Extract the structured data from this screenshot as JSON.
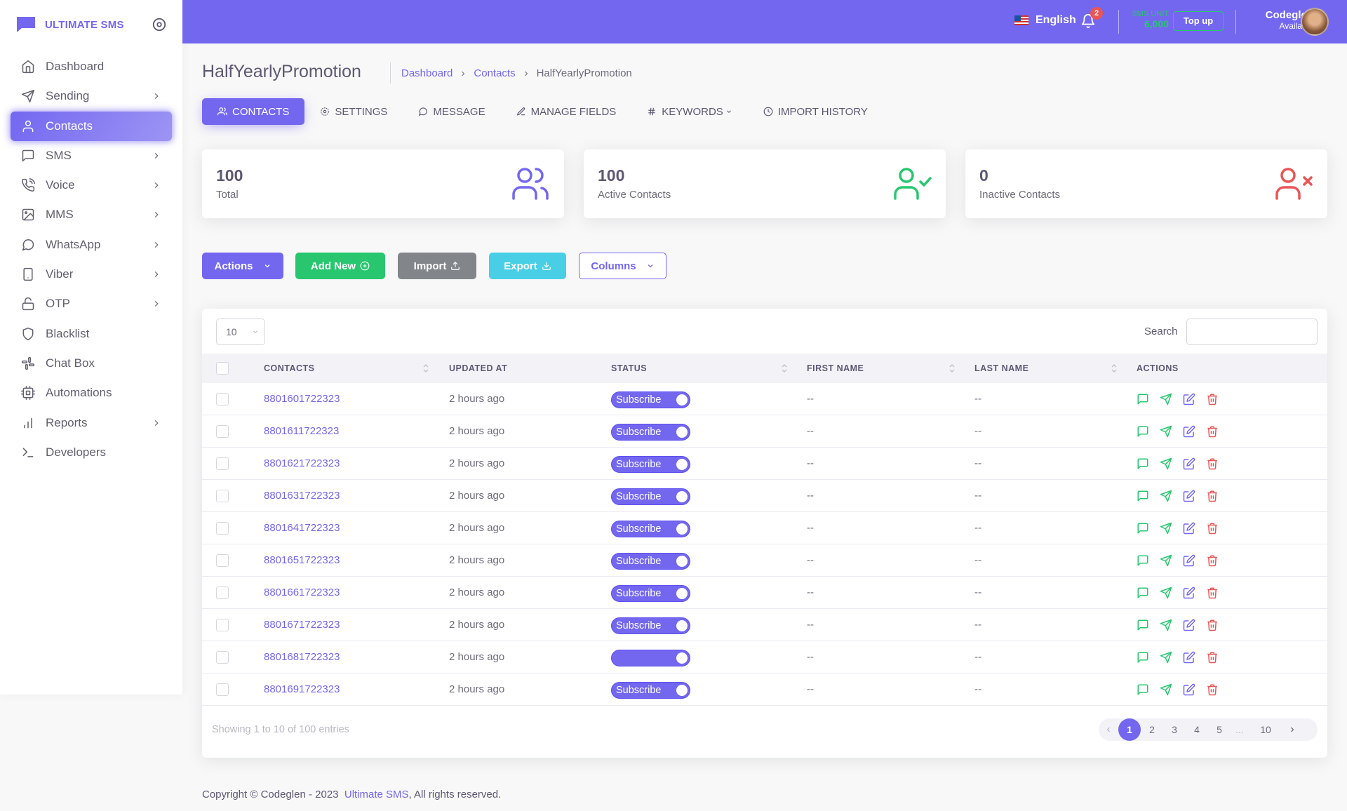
{
  "brand": {
    "name": "ULTIMATE SMS"
  },
  "topbar": {
    "language": "English",
    "notif_count": "2",
    "sms_unit_label": "SMS UNIT",
    "sms_unit_value": "6,000",
    "topup_label": "Top up",
    "user_name": "Codeglen",
    "user_status": "Available"
  },
  "sidebar": {
    "items": [
      {
        "label": "Dashboard",
        "icon": "home-icon",
        "has_children": false
      },
      {
        "label": "Sending",
        "icon": "send-icon",
        "has_children": true
      },
      {
        "label": "Contacts",
        "icon": "user-icon",
        "has_children": false,
        "active": true
      },
      {
        "label": "SMS",
        "icon": "message-square-icon",
        "has_children": true
      },
      {
        "label": "Voice",
        "icon": "phone-call-icon",
        "has_children": true
      },
      {
        "label": "MMS",
        "icon": "image-icon",
        "has_children": true
      },
      {
        "label": "WhatsApp",
        "icon": "message-circle-icon",
        "has_children": true
      },
      {
        "label": "Viber",
        "icon": "smartphone-icon",
        "has_children": true
      },
      {
        "label": "OTP",
        "icon": "unlock-icon",
        "has_children": true
      },
      {
        "label": "Blacklist",
        "icon": "shield-icon",
        "has_children": false
      },
      {
        "label": "Chat Box",
        "icon": "slack-icon",
        "has_children": false
      },
      {
        "label": "Automations",
        "icon": "cpu-icon",
        "has_children": false
      },
      {
        "label": "Reports",
        "icon": "bar-chart-icon",
        "has_children": true
      },
      {
        "label": "Developers",
        "icon": "terminal-icon",
        "has_children": false
      }
    ]
  },
  "page": {
    "title": "HalfYearlyPromotion",
    "breadcrumb": [
      "Dashboard",
      "Contacts",
      "HalfYearlyPromotion"
    ]
  },
  "tabs": [
    {
      "label": "CONTACTS",
      "icon": "users-icon"
    },
    {
      "label": "SETTINGS",
      "icon": "settings-icon"
    },
    {
      "label": "MESSAGE",
      "icon": "message-circle-icon"
    },
    {
      "label": "MANAGE FIELDS",
      "icon": "edit-icon"
    },
    {
      "label": "KEYWORDS",
      "icon": "hash-icon"
    },
    {
      "label": "IMPORT HISTORY",
      "icon": "clock-icon"
    }
  ],
  "stats": [
    {
      "value": "100",
      "label": "Total",
      "icon": "users-icon",
      "color": "#7367f0"
    },
    {
      "value": "100",
      "label": "Active Contacts",
      "icon": "user-check-icon",
      "color": "#28c76f"
    },
    {
      "value": "0",
      "label": "Inactive Contacts",
      "icon": "user-x-icon",
      "color": "#ea5455"
    }
  ],
  "toolbar": {
    "actions": "Actions",
    "add_new": "Add New",
    "import": "Import",
    "export": "Export",
    "columns": "Columns"
  },
  "colors": {
    "primary": "#7367f0",
    "success": "#28c76f",
    "danger": "#ea5455",
    "info": "#48cfe5",
    "secondary": "#82868b"
  },
  "table": {
    "page_length": "10",
    "search_label": "Search",
    "columns": [
      "CONTACTS",
      "UPDATED AT",
      "STATUS",
      "FIRST NAME",
      "LAST NAME",
      "ACTIONS"
    ],
    "rows": [
      {
        "contact": "8801601722323",
        "updated": "2 hours ago",
        "status": "Subscribe",
        "first": "--",
        "last": "--"
      },
      {
        "contact": "8801611722323",
        "updated": "2 hours ago",
        "status": "Subscribe",
        "first": "--",
        "last": "--"
      },
      {
        "contact": "8801621722323",
        "updated": "2 hours ago",
        "status": "Subscribe",
        "first": "--",
        "last": "--"
      },
      {
        "contact": "8801631722323",
        "updated": "2 hours ago",
        "status": "Subscribe",
        "first": "--",
        "last": "--"
      },
      {
        "contact": "8801641722323",
        "updated": "2 hours ago",
        "status": "Subscribe",
        "first": "--",
        "last": "--"
      },
      {
        "contact": "8801651722323",
        "updated": "2 hours ago",
        "status": "Subscribe",
        "first": "--",
        "last": "--"
      },
      {
        "contact": "8801661722323",
        "updated": "2 hours ago",
        "status": "Subscribe",
        "first": "--",
        "last": "--"
      },
      {
        "contact": "8801671722323",
        "updated": "2 hours ago",
        "status": "Subscribe",
        "first": "--",
        "last": "--"
      },
      {
        "contact": "8801681722323",
        "updated": "2 hours ago",
        "status": "",
        "first": "--",
        "last": "--"
      },
      {
        "contact": "8801691722323",
        "updated": "2 hours ago",
        "status": "Subscribe",
        "first": "--",
        "last": "--"
      }
    ],
    "info": "Showing 1 to 10 of 100 entries",
    "pages": [
      "1",
      "2",
      "3",
      "4",
      "5",
      "...",
      "10"
    ],
    "current_page": "1"
  },
  "footer": {
    "text": "Copyright © Codeglen - 2023",
    "link": "Ultimate SMS",
    "suffix": ", All rights reserved."
  }
}
